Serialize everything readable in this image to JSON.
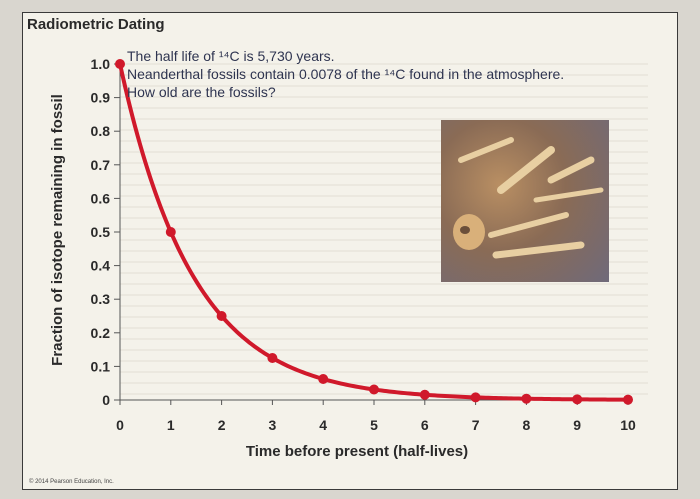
{
  "header": {
    "title": "Radiometric Dating"
  },
  "question": {
    "line1": "The half life of ¹⁴C is 5,730 years.",
    "line2": "Neanderthal fossils contain 0.0078 of the ¹⁴C found in the atmosphere.",
    "line3": "How old are the fossils?"
  },
  "footer": {
    "copyright": "© 2014 Pearson Education, Inc."
  },
  "photo": {
    "description_icon": "fossil-bones-photo"
  },
  "colors": {
    "curve": "#d0192b",
    "text": "#2a2a2a"
  },
  "chart_data": {
    "type": "line",
    "title": "Radiometric Dating",
    "xlabel": "Time before present (half-lives)",
    "ylabel": "Fraction of isotope remaining in fossil",
    "xlim": [
      0,
      10
    ],
    "ylim": [
      0,
      1.0
    ],
    "x_ticks": [
      0,
      1,
      2,
      3,
      4,
      5,
      6,
      7,
      8,
      9,
      10
    ],
    "y_ticks": [
      0,
      0.1,
      0.2,
      0.3,
      0.4,
      0.5,
      0.6,
      0.7,
      0.8,
      0.9,
      1.0
    ],
    "y_tick_labels": [
      "0",
      "0.1",
      "0.2",
      "0.3",
      "0.4",
      "0.5",
      "0.6",
      "0.7",
      "0.8",
      "0.9",
      "1.0"
    ],
    "grid": true,
    "series": [
      {
        "x": [
          0,
          1,
          2,
          3,
          4,
          5,
          6,
          7,
          8,
          9,
          10
        ],
        "values": [
          1.0,
          0.5,
          0.25,
          0.125,
          0.0625,
          0.03125,
          0.015625,
          0.0078,
          0.0039,
          0.00195,
          0.00098
        ]
      }
    ]
  }
}
